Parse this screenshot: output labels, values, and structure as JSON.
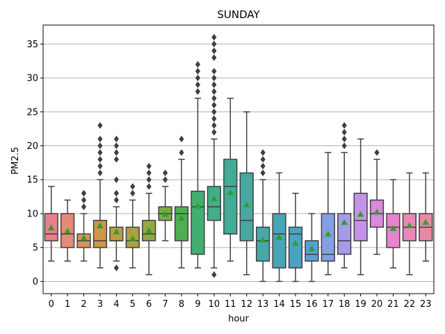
{
  "chart_data": {
    "type": "box",
    "title": "SUNDAY",
    "xlabel": "hour",
    "ylabel": "PM2.5",
    "ylim": [
      -1.8,
      37.8
    ],
    "yticks": [
      0,
      5,
      10,
      15,
      20,
      25,
      30,
      35
    ],
    "grid": "horizontal",
    "categories": [
      "0",
      "1",
      "2",
      "3",
      "4",
      "5",
      "6",
      "7",
      "8",
      "9",
      "10",
      "11",
      "12",
      "13",
      "14",
      "15",
      "16",
      "17",
      "18",
      "19",
      "20",
      "21",
      "22",
      "23"
    ],
    "boxes": [
      {
        "x": "0",
        "color": "#e8808a",
        "wlo": 3,
        "q1": 6,
        "median": 7,
        "q3": 10,
        "whi": 14,
        "mean": 7.9,
        "outliers": []
      },
      {
        "x": "1",
        "color": "#e48a78",
        "wlo": 3,
        "q1": 5,
        "median": 7,
        "q3": 10,
        "whi": 12,
        "mean": 7.4,
        "outliers": []
      },
      {
        "x": "2",
        "color": "#d8925a",
        "wlo": 3,
        "q1": 5,
        "median": 6,
        "q3": 7,
        "whi": 10,
        "mean": 6.4,
        "outliers": [
          11,
          12,
          13
        ]
      },
      {
        "x": "3",
        "color": "#cb974a",
        "wlo": 2,
        "q1": 5,
        "median": 6,
        "q3": 9,
        "whi": 15,
        "mean": 8.2,
        "outliers": [
          16,
          17,
          18,
          19,
          20,
          21,
          23
        ]
      },
      {
        "x": "4",
        "color": "#bb9c43",
        "wlo": 3,
        "q1": 6,
        "median": 6,
        "q3": 8,
        "whi": 11,
        "mean": 7.3,
        "outliers": [
          2,
          12,
          13,
          15,
          18,
          19,
          20,
          21
        ]
      },
      {
        "x": "5",
        "color": "#aba142",
        "wlo": 2,
        "q1": 5,
        "median": 6,
        "q3": 8,
        "whi": 12,
        "mean": 6.3,
        "outliers": [
          13,
          14
        ]
      },
      {
        "x": "6",
        "color": "#96a644",
        "wlo": 1,
        "q1": 6,
        "median": 7,
        "q3": 9,
        "whi": 13,
        "mean": 7.5,
        "outliers": [
          14,
          15,
          16,
          17
        ]
      },
      {
        "x": "7",
        "color": "#79ab45",
        "wlo": 6,
        "q1": 9,
        "median": 10,
        "q3": 11,
        "whi": 14,
        "mean": 9.9,
        "outliers": [
          15,
          16
        ]
      },
      {
        "x": "8",
        "color": "#4fae52",
        "wlo": 2,
        "q1": 6,
        "median": 10,
        "q3": 11,
        "whi": 18,
        "mean": 9.3,
        "outliers": [
          19,
          21
        ]
      },
      {
        "x": "9",
        "color": "#42ae72",
        "wlo": 2,
        "q1": 4,
        "median": 11,
        "q3": 13.3,
        "whi": 27,
        "mean": 11.1,
        "outliers": [
          28,
          29,
          30,
          31,
          32
        ]
      },
      {
        "x": "10",
        "color": "#44ac88",
        "wlo": 2,
        "q1": 9,
        "median": 11,
        "q3": 14,
        "whi": 21,
        "mean": 12.2,
        "outliers": [
          1,
          22,
          23,
          24,
          25,
          26,
          27,
          28,
          29,
          30,
          31,
          33,
          34,
          35,
          36
        ]
      },
      {
        "x": "11",
        "color": "#45aa96",
        "wlo": 3,
        "q1": 7,
        "median": 14,
        "q3": 18,
        "whi": 27,
        "mean": 13.1,
        "outliers": []
      },
      {
        "x": "12",
        "color": "#46a89f",
        "wlo": 1,
        "q1": 6,
        "median": 9,
        "q3": 16,
        "whi": 25,
        "mean": 11.3,
        "outliers": []
      },
      {
        "x": "13",
        "color": "#47a7a9",
        "wlo": 0,
        "q1": 3,
        "median": 6,
        "q3": 8,
        "whi": 15,
        "mean": 6.1,
        "outliers": [
          16,
          17,
          18,
          19
        ]
      },
      {
        "x": "14",
        "color": "#48a5b4",
        "wlo": 0,
        "q1": 2,
        "median": 7,
        "q3": 10,
        "whi": 16,
        "mean": 6.5,
        "outliers": []
      },
      {
        "x": "15",
        "color": "#4aa3c2",
        "wlo": 0,
        "q1": 2,
        "median": 7,
        "q3": 8,
        "whi": 13,
        "mean": 5.6,
        "outliers": []
      },
      {
        "x": "16",
        "color": "#56a0d6",
        "wlo": 0,
        "q1": 3,
        "median": 4,
        "q3": 6,
        "whi": 10,
        "mean": 4.8,
        "outliers": []
      },
      {
        "x": "17",
        "color": "#849fe4",
        "wlo": 1,
        "q1": 3,
        "median": 4,
        "q3": 10,
        "whi": 19,
        "mean": 7.0,
        "outliers": []
      },
      {
        "x": "18",
        "color": "#a69be8",
        "wlo": 2,
        "q1": 4,
        "median": 6,
        "q3": 10,
        "whi": 19,
        "mean": 8.7,
        "outliers": [
          20,
          21,
          22,
          23
        ]
      },
      {
        "x": "19",
        "color": "#c393e8",
        "wlo": 1,
        "q1": 6,
        "median": 9,
        "q3": 13,
        "whi": 21,
        "mean": 9.9,
        "outliers": []
      },
      {
        "x": "20",
        "color": "#dc87e0",
        "wlo": 4,
        "q1": 8,
        "median": 10,
        "q3": 12,
        "whi": 18,
        "mean": 10.2,
        "outliers": [
          19
        ]
      },
      {
        "x": "21",
        "color": "#e784cb",
        "wlo": 2,
        "q1": 5,
        "median": 8,
        "q3": 10,
        "whi": 15,
        "mean": 7.8,
        "outliers": []
      },
      {
        "x": "22",
        "color": "#e987b6",
        "wlo": 1,
        "q1": 6,
        "median": 8,
        "q3": 10,
        "whi": 16,
        "mean": 8.2,
        "outliers": []
      },
      {
        "x": "23",
        "color": "#ea88a4",
        "wlo": 3,
        "q1": 6,
        "median": 8,
        "q3": 10,
        "whi": 16,
        "mean": 8.7,
        "outliers": []
      }
    ],
    "colors": {
      "mean_marker": "#2ca02c",
      "lines": "#3f3f3f",
      "grid": "#b0b0b0"
    }
  }
}
